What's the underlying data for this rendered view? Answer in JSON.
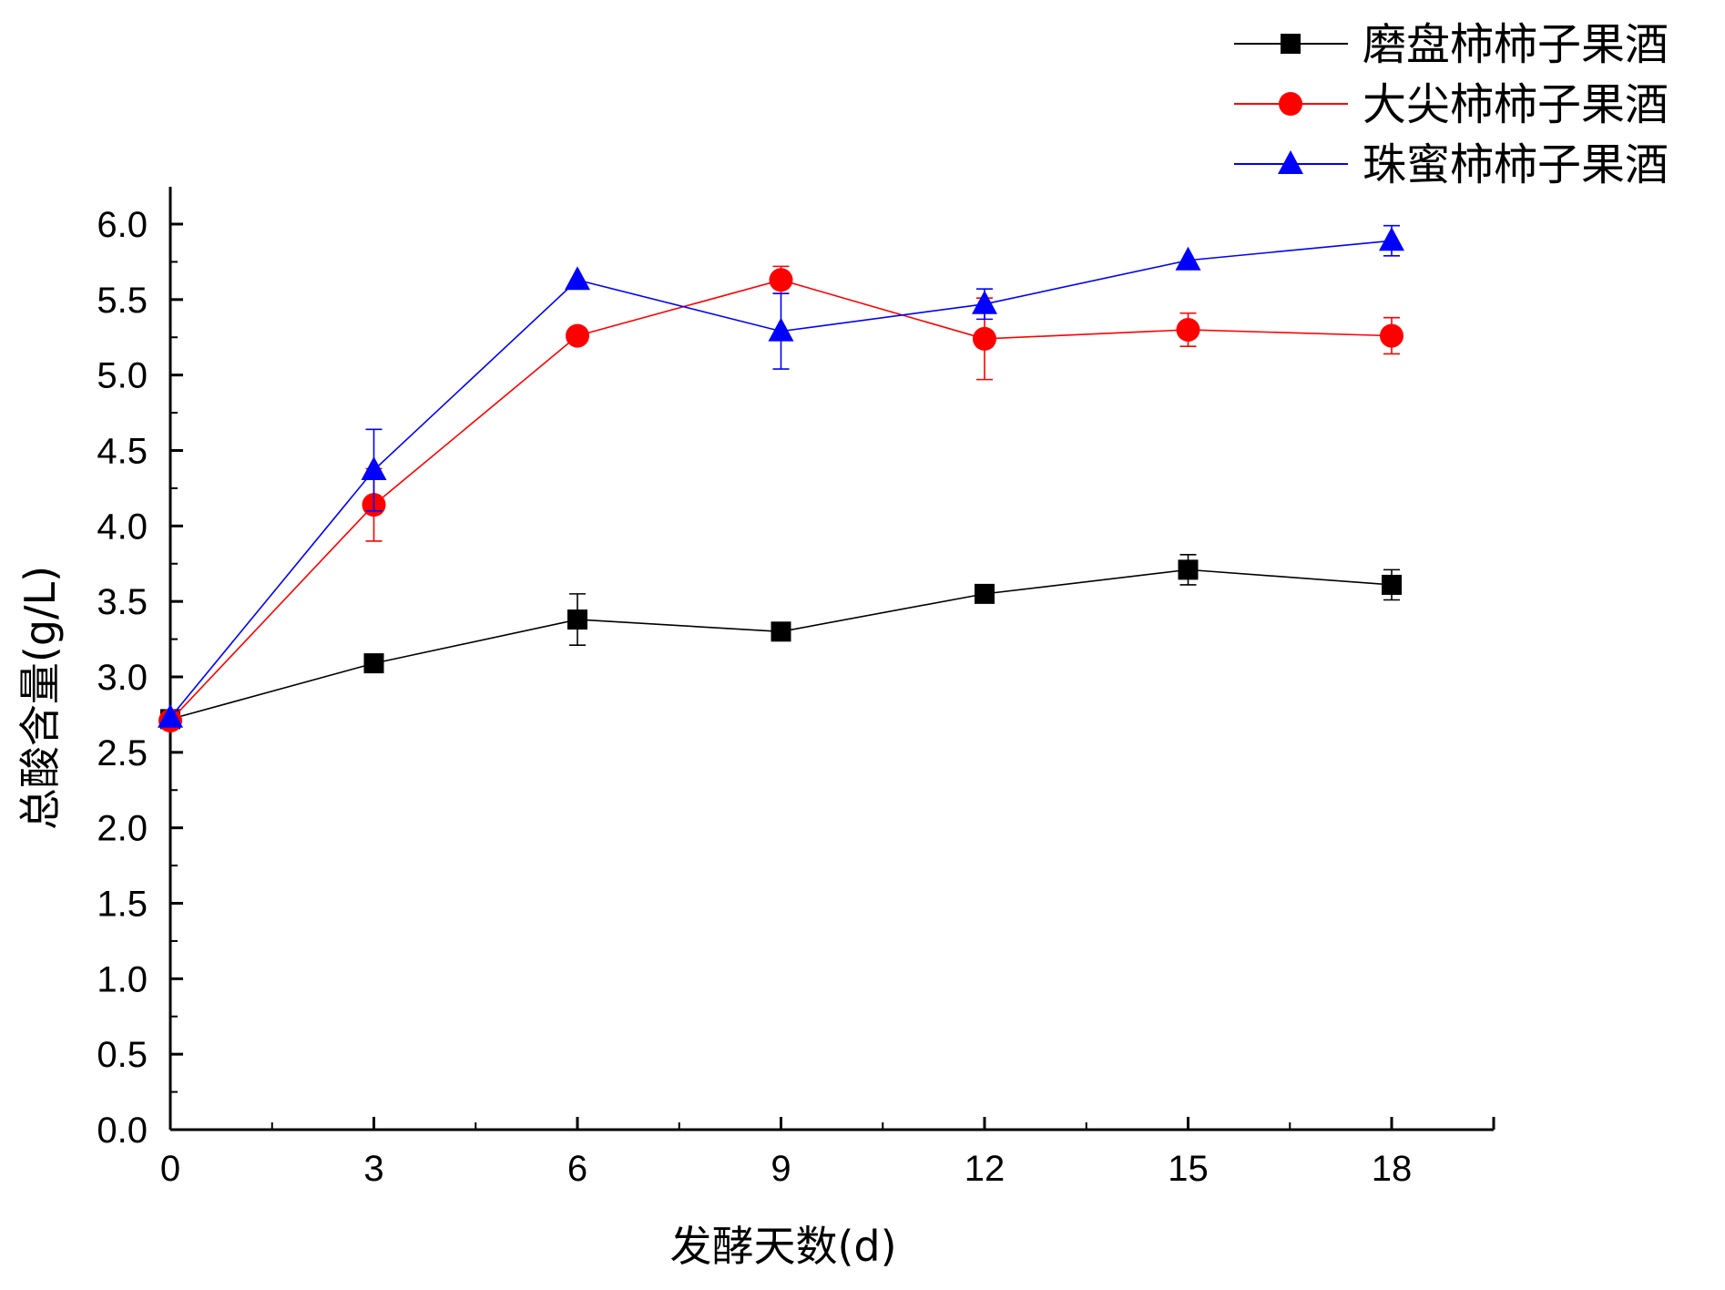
{
  "chart_data": {
    "type": "line",
    "xlabel": "发酵天数(d)",
    "ylabel": "总酸含量(g/L)",
    "xlim": [
      0,
      19.5
    ],
    "ylim": [
      0,
      6.25
    ],
    "xticks": [
      0,
      3,
      6,
      9,
      12,
      15,
      18
    ],
    "xtick_labels": [
      "0",
      "3",
      "6",
      "9",
      "12",
      "15",
      "18"
    ],
    "yticks": [
      0,
      0.5,
      1.0,
      1.5,
      2.0,
      2.5,
      3.0,
      3.5,
      4.0,
      4.5,
      5.0,
      5.5,
      6.0
    ],
    "ytick_labels": [
      "0.0",
      "0.5",
      "1.0",
      "1.5",
      "2.0",
      "2.5",
      "3.0",
      "3.5",
      "4.0",
      "4.5",
      "5.0",
      "5.5",
      "6.0"
    ],
    "grid": false,
    "legend_position": "top-right",
    "x": [
      0,
      3,
      6,
      9,
      12,
      15,
      18
    ],
    "series": [
      {
        "name": "磨盘柿柿子果酒",
        "color": "#000000",
        "marker": "square",
        "values": [
          2.72,
          3.09,
          3.38,
          3.3,
          3.55,
          3.71,
          3.61
        ],
        "errors": [
          0.0,
          0.0,
          0.17,
          0.0,
          0.0,
          0.1,
          0.1
        ]
      },
      {
        "name": "大尖柿柿子果酒",
        "color": "#ff0000",
        "marker": "circle",
        "values": [
          2.71,
          4.14,
          5.26,
          5.63,
          5.24,
          5.3,
          5.26
        ],
        "errors": [
          0.0,
          0.24,
          0.0,
          0.09,
          0.27,
          0.11,
          0.12
        ]
      },
      {
        "name": "珠蜜柿柿子果酒",
        "color": "#0000ff",
        "marker": "triangle",
        "values": [
          2.73,
          4.37,
          5.63,
          5.29,
          5.47,
          5.76,
          5.89
        ],
        "errors": [
          0.0,
          0.27,
          0.0,
          0.25,
          0.1,
          0.0,
          0.1
        ]
      }
    ]
  }
}
